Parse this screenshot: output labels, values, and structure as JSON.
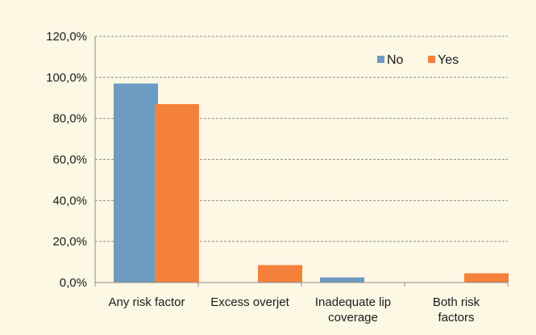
{
  "chart_data": {
    "type": "bar",
    "categories": [
      [
        "Any risk factor"
      ],
      [
        "Excess overjet"
      ],
      [
        "Inadequate lip",
        "coverage"
      ],
      [
        "Both risk",
        "factors"
      ]
    ],
    "series": [
      {
        "name": "No",
        "color": "#6e9bc1",
        "values": [
          97.0,
          0.0,
          2.5,
          0.0
        ]
      },
      {
        "name": "Yes",
        "color": "#f4813b",
        "values": [
          87.0,
          8.5,
          0.0,
          4.5
        ]
      }
    ],
    "y_ticks": [
      "0,0%",
      "20,0%",
      "40,0%",
      "60,0%",
      "80,0%",
      "100,0%",
      "120,0%"
    ],
    "ylim": [
      0,
      120
    ],
    "y_tick_step": 20,
    "grid": true,
    "legend_position": "top-right",
    "title": "",
    "xlabel": "",
    "ylabel": ""
  }
}
